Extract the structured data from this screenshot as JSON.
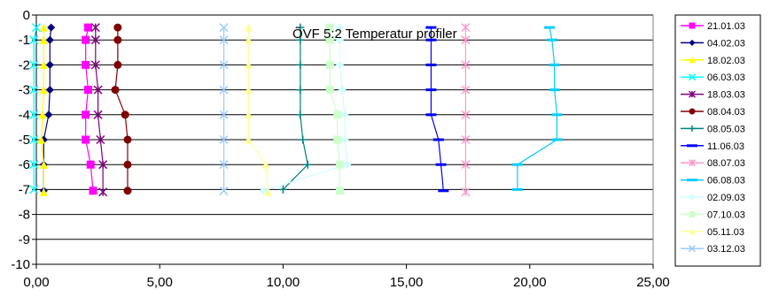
{
  "chart_data": {
    "type": "line",
    "title": "ÖVF 5:2 Temperatur profiler",
    "xlabel": "",
    "ylabel": "",
    "xlim": [
      0,
      25
    ],
    "ylim": [
      -10,
      0
    ],
    "x_ticks": [
      "0,00",
      "5,00",
      "10,00",
      "15,00",
      "20,00",
      "25,00"
    ],
    "y_ticks": [
      "0",
      "-1",
      "-2",
      "-3",
      "-4",
      "-5",
      "-6",
      "-7",
      "-8",
      "-9",
      "-10"
    ],
    "grid": "horizontal",
    "legend_position": "right",
    "series": [
      {
        "name": "21.01.03",
        "color": "#ff00ff",
        "marker": "square",
        "points": [
          [
            2.1,
            -0.5
          ],
          [
            2.0,
            -1
          ],
          [
            2.0,
            -2
          ],
          [
            2.1,
            -3
          ],
          [
            2.0,
            -4
          ],
          [
            2.0,
            -5
          ],
          [
            2.2,
            -6
          ],
          [
            2.3,
            -7.05
          ]
        ]
      },
      {
        "name": "04.02.03",
        "color": "#000080",
        "marker": "diamond",
        "points": [
          [
            0.6,
            -0.5
          ],
          [
            0.55,
            -1
          ],
          [
            0.55,
            -2
          ],
          [
            0.55,
            -3
          ],
          [
            0.5,
            -4
          ],
          [
            0.3,
            -5
          ],
          [
            0.3,
            -6
          ],
          [
            0.3,
            -7.05
          ]
        ]
      },
      {
        "name": "18.02.03",
        "color": "#ffff00",
        "marker": "triangle",
        "points": [
          [
            0.3,
            -0.5
          ],
          [
            0.3,
            -1
          ],
          [
            0.3,
            -2
          ],
          [
            0.3,
            -3
          ],
          [
            0.25,
            -4
          ],
          [
            0.2,
            -5
          ],
          [
            0.3,
            -6
          ],
          [
            0.3,
            -7.1
          ]
        ]
      },
      {
        "name": "06.03.03",
        "color": "#00ffff",
        "marker": "x",
        "points": [
          [
            0,
            -0.5
          ],
          [
            -0.1,
            -1
          ],
          [
            -0.1,
            -2
          ],
          [
            -0.1,
            -3
          ],
          [
            -0.1,
            -4
          ],
          [
            -0.1,
            -5
          ],
          [
            -0.1,
            -6
          ],
          [
            -0.1,
            -7
          ]
        ]
      },
      {
        "name": "18.03.03",
        "color": "#800080",
        "marker": "star",
        "points": [
          [
            2.4,
            -0.5
          ],
          [
            2.4,
            -1
          ],
          [
            2.4,
            -2
          ],
          [
            2.5,
            -3
          ],
          [
            2.5,
            -4
          ],
          [
            2.6,
            -5
          ],
          [
            2.7,
            -6
          ],
          [
            2.7,
            -7.1
          ]
        ]
      },
      {
        "name": "08.04.03",
        "color": "#800000",
        "marker": "circle",
        "points": [
          [
            3.3,
            -0.5
          ],
          [
            3.3,
            -1
          ],
          [
            3.3,
            -2
          ],
          [
            3.2,
            -3
          ],
          [
            3.6,
            -4
          ],
          [
            3.7,
            -5
          ],
          [
            3.7,
            -6
          ],
          [
            3.7,
            -7.05
          ]
        ]
      },
      {
        "name": "08.05.03",
        "color": "#008080",
        "marker": "plus",
        "points": [
          [
            10.7,
            -0.5
          ],
          [
            10.7,
            -1
          ],
          [
            10.7,
            -2
          ],
          [
            10.7,
            -3
          ],
          [
            10.7,
            -4
          ],
          [
            10.8,
            -5
          ],
          [
            11.0,
            -6
          ],
          [
            10.0,
            -7
          ]
        ]
      },
      {
        "name": "11.06.03",
        "color": "#0000ff",
        "marker": "dash",
        "points": [
          [
            16.0,
            -0.5
          ],
          [
            16.0,
            -1
          ],
          [
            16.0,
            -2
          ],
          [
            16.0,
            -3
          ],
          [
            16.0,
            -4
          ],
          [
            16.3,
            -5
          ],
          [
            16.4,
            -6
          ],
          [
            16.5,
            -7.05
          ]
        ]
      },
      {
        "name": "08.07.03",
        "color": "#ff99cc",
        "marker": "star",
        "points": [
          [
            17.4,
            -0.5
          ],
          [
            17.4,
            -1
          ],
          [
            17.4,
            -2
          ],
          [
            17.4,
            -3
          ],
          [
            17.4,
            -4
          ],
          [
            17.4,
            -5
          ],
          [
            17.4,
            -6
          ],
          [
            17.4,
            -7.1
          ]
        ]
      },
      {
        "name": "06.08.03",
        "color": "#00ccff",
        "marker": "dash",
        "points": [
          [
            20.8,
            -0.5
          ],
          [
            20.9,
            -1
          ],
          [
            21.0,
            -2
          ],
          [
            21.0,
            -3
          ],
          [
            21.1,
            -4
          ],
          [
            21.1,
            -5
          ],
          [
            19.5,
            -6
          ],
          [
            19.5,
            -7
          ]
        ]
      },
      {
        "name": "02.09.03",
        "color": "#ccffff",
        "marker": "diamond",
        "points": [
          [
            12.3,
            -0.5
          ],
          [
            12.3,
            -1
          ],
          [
            12.3,
            -2
          ],
          [
            12.4,
            -3
          ],
          [
            12.5,
            -4
          ],
          [
            12.5,
            -5
          ],
          [
            12.6,
            -6
          ],
          [
            9.2,
            -7.05
          ]
        ]
      },
      {
        "name": "07.10.03",
        "color": "#ccffcc",
        "marker": "square",
        "points": [
          [
            11.9,
            -0.5
          ],
          [
            11.9,
            -1
          ],
          [
            11.9,
            -2
          ],
          [
            11.9,
            -3
          ],
          [
            12.2,
            -4
          ],
          [
            12.2,
            -5
          ],
          [
            12.3,
            -6
          ],
          [
            12.3,
            -7.05
          ]
        ]
      },
      {
        "name": "05.11.03",
        "color": "#ffff99",
        "marker": "triangle",
        "points": [
          [
            8.6,
            -0.5
          ],
          [
            8.6,
            -1
          ],
          [
            8.6,
            -2
          ],
          [
            8.6,
            -3
          ],
          [
            8.6,
            -4
          ],
          [
            8.6,
            -5
          ],
          [
            9.3,
            -6
          ],
          [
            9.4,
            -7.1
          ]
        ]
      },
      {
        "name": "03.12.03",
        "color": "#99ccff",
        "marker": "x",
        "points": [
          [
            7.6,
            -0.5
          ],
          [
            7.6,
            -1
          ],
          [
            7.6,
            -2
          ],
          [
            7.6,
            -3
          ],
          [
            7.6,
            -4
          ],
          [
            7.6,
            -5
          ],
          [
            7.6,
            -6
          ],
          [
            7.6,
            -7.05
          ]
        ]
      }
    ]
  }
}
